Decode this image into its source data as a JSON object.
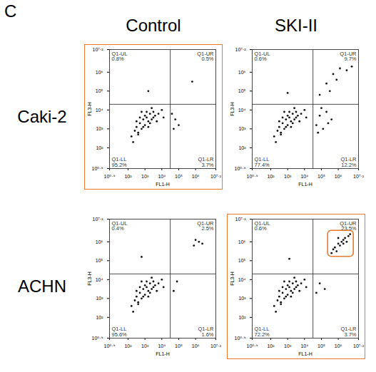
{
  "panel_label": "C",
  "columns": [
    "Control",
    "SKI-II"
  ],
  "rows": [
    "Caki-2",
    "ACHN"
  ],
  "chart_data": [
    {
      "type": "scatter",
      "row": "Caki-2",
      "column": "Control",
      "x_label": "FL1-H",
      "y_label": "FL3-H",
      "xlim": [
        0.9,
        7.2
      ],
      "ylim": [
        0.9,
        7.2
      ],
      "xticks": [
        {
          "value": 0.9,
          "label": "10⁰·⁹"
        },
        {
          "value": 2,
          "label": "10²"
        },
        {
          "value": 3,
          "label": "10³"
        },
        {
          "value": 4,
          "label": "10⁴"
        },
        {
          "value": 5,
          "label": "10⁵"
        },
        {
          "value": 6,
          "label": "10⁶"
        },
        {
          "value": 7.2,
          "label": "10⁷·²"
        }
      ],
      "yticks": [
        {
          "value": 0.9,
          "label": "10⁰·⁹"
        },
        {
          "value": 2,
          "label": "10²"
        },
        {
          "value": 3,
          "label": "10³"
        },
        {
          "value": 4,
          "label": "10⁴"
        },
        {
          "value": 5,
          "label": "10⁵"
        },
        {
          "value": 6,
          "label": "10⁶"
        },
        {
          "value": 7.2,
          "label": "10⁷·²"
        }
      ],
      "gates": {
        "x": 4.5,
        "y": 4.3
      },
      "color": "#111111",
      "quadrants": [
        {
          "name": "Q1-UL",
          "value": 0.8,
          "value_label": "0.8%"
        },
        {
          "name": "Q1-UR",
          "value": 0.5,
          "value_label": "0.5%"
        },
        {
          "name": "Q1-LL",
          "value": 95.2,
          "value_label": "95.2%"
        },
        {
          "name": "Q1-LR",
          "value": 3.7,
          "value_label": "3.7%"
        }
      ],
      "x": [
        2.2,
        2.4,
        2.5,
        2.6,
        2.7,
        2.8,
        2.9,
        3.0,
        3.1,
        3.2,
        3.3,
        3.4,
        3.5,
        3.6,
        3.8,
        4.0,
        2.5,
        2.7,
        2.9,
        3.1,
        3.3,
        3.5,
        2.6,
        2.8,
        3.0,
        3.2,
        3.4,
        2.3,
        3.7,
        4.1,
        4.7,
        4.8,
        5.0,
        4.6,
        5.8,
        3.2
      ],
      "y": [
        2.6,
        2.9,
        3.1,
        2.8,
        3.3,
        3.0,
        3.5,
        3.2,
        3.6,
        3.4,
        3.8,
        3.5,
        3.9,
        3.7,
        3.8,
        4.0,
        3.4,
        3.6,
        3.1,
        3.9,
        3.3,
        3.6,
        2.7,
        3.9,
        3.7,
        3.1,
        4.1,
        2.3,
        3.4,
        3.6,
        3.0,
        3.5,
        3.2,
        3.8,
        5.5,
        5.0
      ]
    },
    {
      "type": "scatter",
      "row": "Caki-2",
      "column": "SKI-II",
      "x_label": "FL1-H",
      "y_label": "FL3-H",
      "xlim": [
        0.9,
        7.2
      ],
      "ylim": [
        0.9,
        7.2
      ],
      "xticks": [
        {
          "value": 0.9,
          "label": "10⁰·⁹"
        },
        {
          "value": 2,
          "label": "10²"
        },
        {
          "value": 3,
          "label": "10³"
        },
        {
          "value": 4,
          "label": "10⁴"
        },
        {
          "value": 5,
          "label": "10⁵"
        },
        {
          "value": 6,
          "label": "10⁶"
        },
        {
          "value": 7.2,
          "label": "10⁷·²"
        }
      ],
      "yticks": [
        {
          "value": 0.9,
          "label": "10⁰·⁹"
        },
        {
          "value": 2,
          "label": "10²"
        },
        {
          "value": 3,
          "label": "10³"
        },
        {
          "value": 4,
          "label": "10⁴"
        },
        {
          "value": 5,
          "label": "10⁵"
        },
        {
          "value": 6,
          "label": "10⁶"
        },
        {
          "value": 7.2,
          "label": "10⁷·²"
        }
      ],
      "gates": {
        "x": 4.5,
        "y": 4.3
      },
      "color": "#111111",
      "quadrants": [
        {
          "name": "Q1-UL",
          "value": 0.6,
          "value_label": "0.6%"
        },
        {
          "name": "Q1-UR",
          "value": 9.7,
          "value_label": "9.7%"
        },
        {
          "name": "Q1-LL",
          "value": 77.4,
          "value_label": "77.4%"
        },
        {
          "name": "Q1-LR",
          "value": 12.2,
          "value_label": "12.2%"
        }
      ],
      "x": [
        2.2,
        2.4,
        2.5,
        2.6,
        2.7,
        2.8,
        2.9,
        3.0,
        3.1,
        3.2,
        3.3,
        3.4,
        3.5,
        3.6,
        3.8,
        4.0,
        2.5,
        2.7,
        2.9,
        3.1,
        3.3,
        3.5,
        2.6,
        2.8,
        3.0,
        3.2,
        3.4,
        2.3,
        3.7,
        4.1,
        4.7,
        4.9,
        5.1,
        5.3,
        5.6,
        4.8,
        5.0,
        5.4,
        4.9,
        5.3,
        5.7,
        6.1,
        6.5,
        5.9,
        6.8,
        5.5,
        3.0
      ],
      "y": [
        2.6,
        2.9,
        3.1,
        2.8,
        3.3,
        3.0,
        3.5,
        3.2,
        3.6,
        3.4,
        3.8,
        3.5,
        3.9,
        3.7,
        3.8,
        4.0,
        3.4,
        3.6,
        3.1,
        3.9,
        3.3,
        3.6,
        2.7,
        3.9,
        3.7,
        3.1,
        4.1,
        2.3,
        3.4,
        3.6,
        3.2,
        3.7,
        3.0,
        3.9,
        3.5,
        2.8,
        4.1,
        3.3,
        4.8,
        5.4,
        5.9,
        6.2,
        6.1,
        5.6,
        6.3,
        5.0,
        4.9
      ]
    },
    {
      "type": "scatter",
      "row": "ACHN",
      "column": "Control",
      "x_label": "FL1-H",
      "y_label": "FL3-H",
      "xlim": [
        0.9,
        7.2
      ],
      "ylim": [
        0.9,
        7.2
      ],
      "xticks": [
        {
          "value": 0.9,
          "label": "10⁰·⁹"
        },
        {
          "value": 2,
          "label": "10²"
        },
        {
          "value": 3,
          "label": "10³"
        },
        {
          "value": 4,
          "label": "10⁴"
        },
        {
          "value": 5,
          "label": "10⁵"
        },
        {
          "value": 6,
          "label": "10⁶"
        },
        {
          "value": 7.2,
          "label": "10⁷·²"
        }
      ],
      "yticks": [
        {
          "value": 0.9,
          "label": "10⁰·⁹"
        },
        {
          "value": 2,
          "label": "10²"
        },
        {
          "value": 3,
          "label": "10³"
        },
        {
          "value": 4,
          "label": "10⁴"
        },
        {
          "value": 5,
          "label": "10⁵"
        },
        {
          "value": 6,
          "label": "10⁶"
        },
        {
          "value": 7.2,
          "label": "10⁷·²"
        }
      ],
      "gates": {
        "x": 4.5,
        "y": 4.3
      },
      "color": "#111111",
      "quadrants": [
        {
          "name": "Q1-UL",
          "value": 0.4,
          "value_label": "0.4%"
        },
        {
          "name": "Q1-UR",
          "value": 2.5,
          "value_label": "2.5%"
        },
        {
          "name": "Q1-LL",
          "value": 95.6,
          "value_label": "95.6%"
        },
        {
          "name": "Q1-LR",
          "value": 1.6,
          "value_label": "1.6%"
        }
      ],
      "x": [
        2.2,
        2.4,
        2.5,
        2.6,
        2.7,
        2.8,
        2.9,
        3.0,
        3.1,
        3.2,
        3.3,
        3.4,
        3.5,
        3.6,
        3.8,
        4.0,
        2.5,
        2.7,
        2.9,
        3.1,
        3.3,
        3.5,
        2.6,
        2.8,
        3.0,
        3.2,
        3.4,
        2.3,
        3.7,
        4.1,
        4.7,
        4.9,
        5.9,
        6.2,
        6.4,
        6.0,
        2.8
      ],
      "y": [
        2.6,
        2.9,
        3.1,
        2.8,
        3.3,
        3.0,
        3.5,
        3.2,
        3.6,
        3.4,
        3.8,
        3.5,
        3.9,
        3.7,
        3.8,
        4.0,
        3.4,
        3.6,
        3.1,
        3.9,
        3.3,
        3.6,
        2.7,
        3.9,
        3.7,
        3.1,
        4.1,
        2.3,
        3.4,
        3.6,
        3.4,
        3.9,
        5.8,
        6.0,
        5.9,
        6.1,
        5.2
      ]
    },
    {
      "type": "scatter",
      "row": "ACHN",
      "column": "SKI-II",
      "x_label": "FL1-H",
      "y_label": "FL3-H",
      "xlim": [
        0.9,
        7.2
      ],
      "ylim": [
        0.9,
        7.2
      ],
      "xticks": [
        {
          "value": 0.9,
          "label": "10⁰·⁹"
        },
        {
          "value": 2,
          "label": "10²"
        },
        {
          "value": 3,
          "label": "10³"
        },
        {
          "value": 4,
          "label": "10⁴"
        },
        {
          "value": 5,
          "label": "10⁵"
        },
        {
          "value": 6,
          "label": "10⁶"
        },
        {
          "value": 7.2,
          "label": "10⁷·²"
        }
      ],
      "yticks": [
        {
          "value": 0.9,
          "label": "10⁰·⁹"
        },
        {
          "value": 2,
          "label": "10²"
        },
        {
          "value": 3,
          "label": "10³"
        },
        {
          "value": 4,
          "label": "10⁴"
        },
        {
          "value": 5,
          "label": "10⁵"
        },
        {
          "value": 6,
          "label": "10⁶"
        },
        {
          "value": 7.2,
          "label": "10⁷·²"
        }
      ],
      "gates": {
        "x": 4.5,
        "y": 4.3
      },
      "color": "#111111",
      "quadrants": [
        {
          "name": "Q1-UL",
          "value": 0.6,
          "value_label": "0.6%"
        },
        {
          "name": "Q1-UR",
          "value": 23.5,
          "value_label": "23.5%"
        },
        {
          "name": "Q1-LL",
          "value": 72.2,
          "value_label": "72.2%"
        },
        {
          "name": "Q1-LR",
          "value": 3.7,
          "value_label": "3.7%"
        }
      ],
      "x": [
        2.2,
        2.4,
        2.5,
        2.6,
        2.7,
        2.8,
        2.9,
        3.0,
        3.1,
        3.2,
        3.3,
        3.4,
        3.5,
        3.6,
        3.8,
        4.0,
        2.5,
        2.7,
        2.9,
        3.1,
        3.3,
        3.5,
        2.6,
        2.8,
        3.0,
        3.2,
        3.4,
        2.3,
        3.7,
        4.1,
        4.7,
        4.9,
        5.2,
        5.6,
        5.8,
        6.0,
        6.2,
        6.4,
        6.6,
        5.9,
        6.1,
        6.3,
        6.5,
        6.7,
        5.7,
        6.0,
        6.3,
        3.1
      ],
      "y": [
        2.6,
        2.9,
        3.1,
        2.8,
        3.3,
        3.0,
        3.5,
        3.2,
        3.6,
        3.4,
        3.8,
        3.5,
        3.9,
        3.7,
        3.8,
        4.0,
        3.4,
        3.6,
        3.1,
        3.9,
        3.3,
        3.6,
        2.7,
        3.9,
        3.7,
        3.1,
        4.1,
        2.3,
        3.4,
        3.6,
        3.3,
        3.8,
        3.5,
        5.4,
        5.7,
        5.9,
        6.0,
        6.2,
        6.3,
        5.5,
        5.8,
        5.9,
        6.0,
        6.4,
        5.6,
        6.2,
        6.1,
        5.1
      ]
    }
  ]
}
